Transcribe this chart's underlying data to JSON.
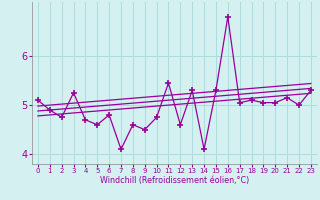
{
  "x": [
    0,
    1,
    2,
    3,
    4,
    5,
    6,
    7,
    8,
    9,
    10,
    11,
    12,
    13,
    14,
    15,
    16,
    17,
    18,
    19,
    20,
    21,
    22,
    23
  ],
  "y_main": [
    5.1,
    4.9,
    4.75,
    5.25,
    4.7,
    4.6,
    4.8,
    4.1,
    4.6,
    4.5,
    4.75,
    5.45,
    4.6,
    5.3,
    4.1,
    5.3,
    6.8,
    5.05,
    5.1,
    5.05,
    5.05,
    5.15,
    5.0,
    5.3
  ],
  "y_line1": [
    4.78,
    4.8,
    4.82,
    4.84,
    4.86,
    4.88,
    4.9,
    4.92,
    4.94,
    4.96,
    4.98,
    5.0,
    5.02,
    5.04,
    5.06,
    5.08,
    5.1,
    5.12,
    5.14,
    5.16,
    5.18,
    5.2,
    5.22,
    5.24
  ],
  "y_line2": [
    4.88,
    4.9,
    4.92,
    4.94,
    4.96,
    4.98,
    5.0,
    5.02,
    5.04,
    5.06,
    5.08,
    5.1,
    5.12,
    5.14,
    5.16,
    5.18,
    5.2,
    5.22,
    5.24,
    5.26,
    5.28,
    5.3,
    5.32,
    5.34
  ],
  "y_line3": [
    4.98,
    5.0,
    5.02,
    5.04,
    5.06,
    5.08,
    5.1,
    5.12,
    5.14,
    5.16,
    5.18,
    5.2,
    5.22,
    5.24,
    5.26,
    5.28,
    5.3,
    5.32,
    5.34,
    5.36,
    5.38,
    5.4,
    5.42,
    5.44
  ],
  "line_color": "#990099",
  "bg_color": "#d4f0f0",
  "grid_color": "#aadddd",
  "xlabel": "Windchill (Refroidissement éolien,°C)",
  "xlim": [
    -0.5,
    23.5
  ],
  "ylim": [
    3.8,
    7.1
  ],
  "yticks": [
    4,
    5,
    6
  ],
  "xticks": [
    0,
    1,
    2,
    3,
    4,
    5,
    6,
    7,
    8,
    9,
    10,
    11,
    12,
    13,
    14,
    15,
    16,
    17,
    18,
    19,
    20,
    21,
    22,
    23
  ]
}
